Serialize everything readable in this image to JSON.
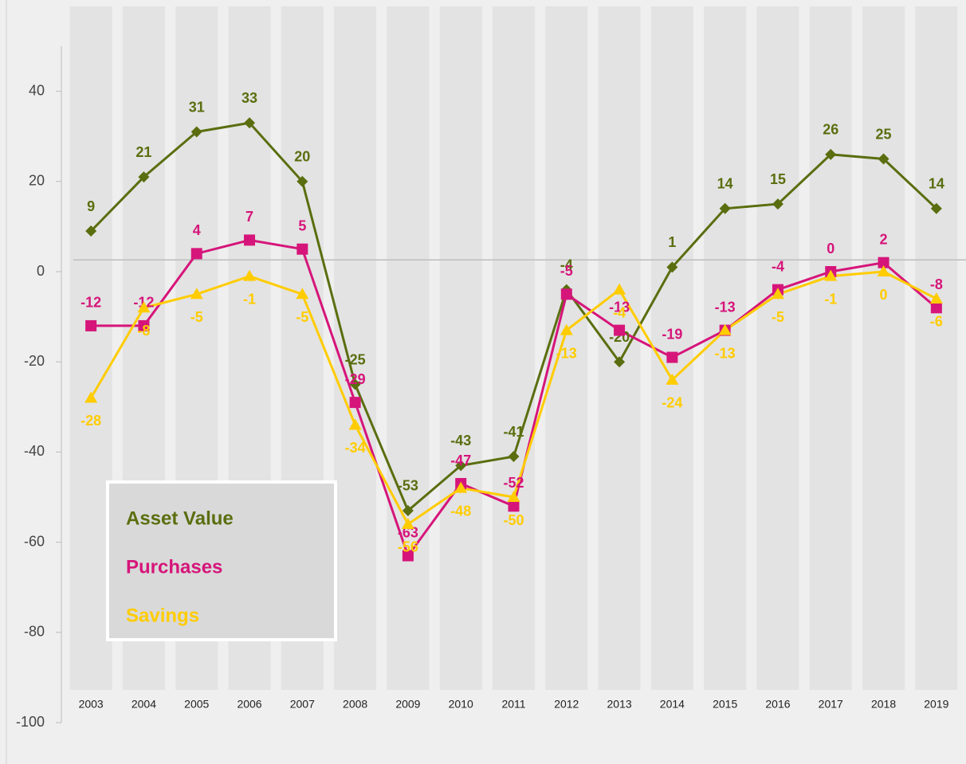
{
  "chart_data": {
    "type": "line",
    "categories": [
      "2003",
      "2004",
      "2005",
      "2006",
      "2007",
      "2008",
      "2009",
      "2010",
      "2011",
      "2012",
      "2013",
      "2014",
      "2015",
      "2016",
      "2017",
      "2018",
      "2019"
    ],
    "series": [
      {
        "name": "Asset Value",
        "color": "#5a6e0f",
        "marker": "diamond",
        "values": [
          9,
          21,
          31,
          33,
          20,
          -25,
          -53,
          -43,
          -41,
          -4,
          -20,
          1,
          14,
          15,
          26,
          25,
          14
        ]
      },
      {
        "name": "Purchases",
        "color": "#d6157a",
        "marker": "square",
        "values": [
          -12,
          -12,
          4,
          7,
          5,
          -29,
          -63,
          -47,
          -52,
          -5,
          -13,
          -19,
          -13,
          -4,
          0,
          2,
          -8
        ]
      },
      {
        "name": "Savings",
        "color": "#ffcc00",
        "marker": "triangle",
        "values": [
          -28,
          -8,
          -5,
          -1,
          -5,
          -34,
          -56,
          -48,
          -50,
          -13,
          -4,
          -24,
          -13,
          -5,
          -1,
          0,
          -6
        ]
      }
    ],
    "ylim": [
      -100,
      50
    ],
    "yticks": [
      -100,
      -80,
      -60,
      -40,
      -20,
      0,
      20,
      40
    ],
    "reference_line": 2.6,
    "legend": "lower left"
  }
}
